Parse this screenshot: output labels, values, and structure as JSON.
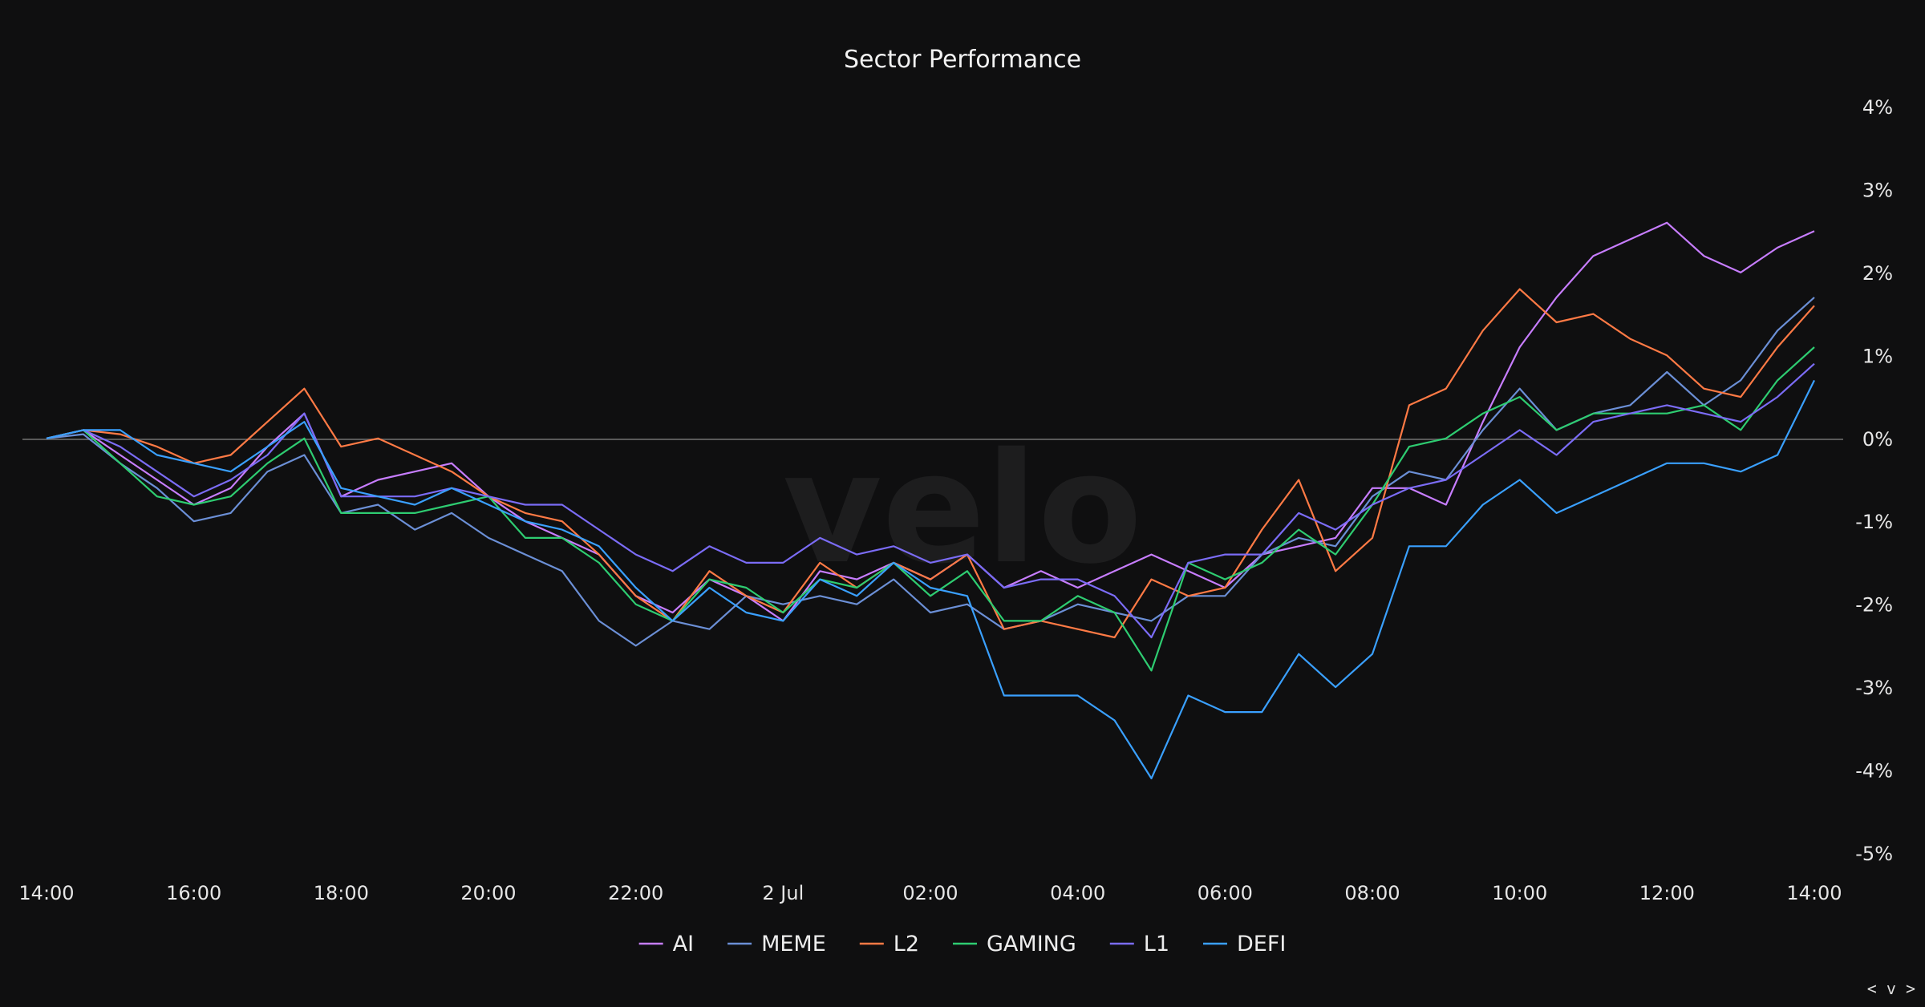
{
  "chart_data": {
    "type": "line",
    "title": "Sector Performance",
    "watermark": "velo",
    "corner_icon": "< v >",
    "x_tick_labels": [
      "14:00",
      "16:00",
      "18:00",
      "20:00",
      "22:00",
      "2 Jul",
      "02:00",
      "04:00",
      "06:00",
      "08:00",
      "10:00",
      "12:00",
      "14:00"
    ],
    "x_hours_range": [
      0,
      24
    ],
    "y_tick_labels": [
      "4%",
      "3%",
      "2%",
      "1%",
      "0%",
      "-1%",
      "-2%",
      "-3%",
      "-4%",
      "-5%"
    ],
    "ylim": [
      -5,
      4
    ],
    "y_axis_side": "right",
    "zero_line": true,
    "legend_position": "bottom-center",
    "series": [
      {
        "name": "AI",
        "color": "#c77dff",
        "points": [
          [
            0,
            0
          ],
          [
            0.5,
            0.1
          ],
          [
            1,
            -0.2
          ],
          [
            1.5,
            -0.5
          ],
          [
            2,
            -0.8
          ],
          [
            2.5,
            -0.6
          ],
          [
            3,
            -0.1
          ],
          [
            3.5,
            0.3
          ],
          [
            4,
            -0.7
          ],
          [
            4.5,
            -0.5
          ],
          [
            5,
            -0.4
          ],
          [
            5.5,
            -0.3
          ],
          [
            6,
            -0.7
          ],
          [
            6.5,
            -1.0
          ],
          [
            7,
            -1.2
          ],
          [
            7.5,
            -1.4
          ],
          [
            8,
            -1.9
          ],
          [
            8.5,
            -2.1
          ],
          [
            9,
            -1.7
          ],
          [
            9.5,
            -1.9
          ],
          [
            10,
            -2.2
          ],
          [
            10.5,
            -1.6
          ],
          [
            11,
            -1.7
          ],
          [
            11.5,
            -1.5
          ],
          [
            12,
            -1.7
          ],
          [
            12.5,
            -1.4
          ],
          [
            13,
            -1.8
          ],
          [
            13.5,
            -1.6
          ],
          [
            14,
            -1.8
          ],
          [
            14.5,
            -1.6
          ],
          [
            15,
            -1.4
          ],
          [
            15.5,
            -1.6
          ],
          [
            16,
            -1.8
          ],
          [
            16.5,
            -1.4
          ],
          [
            17,
            -1.3
          ],
          [
            17.5,
            -1.2
          ],
          [
            18,
            -0.6
          ],
          [
            18.5,
            -0.6
          ],
          [
            19,
            -0.8
          ],
          [
            19.5,
            0.2
          ],
          [
            20,
            1.1
          ],
          [
            20.5,
            1.7
          ],
          [
            21,
            2.2
          ],
          [
            21.5,
            2.4
          ],
          [
            22,
            2.6
          ],
          [
            22.5,
            2.2
          ],
          [
            23,
            2.0
          ],
          [
            23.5,
            2.3
          ],
          [
            24,
            2.5
          ]
        ]
      },
      {
        "name": "MEME",
        "color": "#6b8fd6",
        "points": [
          [
            0,
            0
          ],
          [
            0.5,
            0.05
          ],
          [
            1,
            -0.3
          ],
          [
            1.5,
            -0.6
          ],
          [
            2,
            -1.0
          ],
          [
            2.5,
            -0.9
          ],
          [
            3,
            -0.4
          ],
          [
            3.5,
            -0.2
          ],
          [
            4,
            -0.9
          ],
          [
            4.5,
            -0.8
          ],
          [
            5,
            -1.1
          ],
          [
            5.5,
            -0.9
          ],
          [
            6,
            -1.2
          ],
          [
            6.5,
            -1.4
          ],
          [
            7,
            -1.6
          ],
          [
            7.5,
            -2.2
          ],
          [
            8,
            -2.5
          ],
          [
            8.5,
            -2.2
          ],
          [
            9,
            -2.3
          ],
          [
            9.5,
            -1.9
          ],
          [
            10,
            -2.0
          ],
          [
            10.5,
            -1.9
          ],
          [
            11,
            -2.0
          ],
          [
            11.5,
            -1.7
          ],
          [
            12,
            -2.1
          ],
          [
            12.5,
            -2.0
          ],
          [
            13,
            -2.3
          ],
          [
            13.5,
            -2.2
          ],
          [
            14,
            -2.0
          ],
          [
            14.5,
            -2.1
          ],
          [
            15,
            -2.2
          ],
          [
            15.5,
            -1.9
          ],
          [
            16,
            -1.9
          ],
          [
            16.5,
            -1.4
          ],
          [
            17,
            -1.2
          ],
          [
            17.5,
            -1.3
          ],
          [
            18,
            -0.7
          ],
          [
            18.5,
            -0.4
          ],
          [
            19,
            -0.5
          ],
          [
            19.5,
            0.1
          ],
          [
            20,
            0.6
          ],
          [
            20.5,
            0.1
          ],
          [
            21,
            0.3
          ],
          [
            21.5,
            0.4
          ],
          [
            22,
            0.8
          ],
          [
            22.5,
            0.4
          ],
          [
            23,
            0.7
          ],
          [
            23.5,
            1.3
          ],
          [
            24,
            1.7
          ]
        ]
      },
      {
        "name": "L2",
        "color": "#ff7a45",
        "points": [
          [
            0,
            0
          ],
          [
            0.5,
            0.1
          ],
          [
            1,
            0.05
          ],
          [
            1.5,
            -0.1
          ],
          [
            2,
            -0.3
          ],
          [
            2.5,
            -0.2
          ],
          [
            3,
            0.2
          ],
          [
            3.5,
            0.6
          ],
          [
            4,
            -0.1
          ],
          [
            4.5,
            0.0
          ],
          [
            5,
            -0.2
          ],
          [
            5.5,
            -0.4
          ],
          [
            6,
            -0.7
          ],
          [
            6.5,
            -0.9
          ],
          [
            7,
            -1.0
          ],
          [
            7.5,
            -1.4
          ],
          [
            8,
            -1.9
          ],
          [
            8.5,
            -2.2
          ],
          [
            9,
            -1.6
          ],
          [
            9.5,
            -1.9
          ],
          [
            10,
            -2.1
          ],
          [
            10.5,
            -1.5
          ],
          [
            11,
            -1.8
          ],
          [
            11.5,
            -1.5
          ],
          [
            12,
            -1.7
          ],
          [
            12.5,
            -1.4
          ],
          [
            13,
            -2.3
          ],
          [
            13.5,
            -2.2
          ],
          [
            14,
            -2.3
          ],
          [
            14.5,
            -2.4
          ],
          [
            15,
            -1.7
          ],
          [
            15.5,
            -1.9
          ],
          [
            16,
            -1.8
          ],
          [
            16.5,
            -1.1
          ],
          [
            17,
            -0.5
          ],
          [
            17.5,
            -1.6
          ],
          [
            18,
            -1.2
          ],
          [
            18.5,
            0.4
          ],
          [
            19,
            0.6
          ],
          [
            19.5,
            1.3
          ],
          [
            20,
            1.8
          ],
          [
            20.5,
            1.4
          ],
          [
            21,
            1.5
          ],
          [
            21.5,
            1.2
          ],
          [
            22,
            1.0
          ],
          [
            22.5,
            0.6
          ],
          [
            23,
            0.5
          ],
          [
            23.5,
            1.1
          ],
          [
            24,
            1.6
          ]
        ]
      },
      {
        "name": "GAMING",
        "color": "#2ecc71",
        "points": [
          [
            0,
            0
          ],
          [
            0.5,
            0.1
          ],
          [
            1,
            -0.3
          ],
          [
            1.5,
            -0.7
          ],
          [
            2,
            -0.8
          ],
          [
            2.5,
            -0.7
          ],
          [
            3,
            -0.3
          ],
          [
            3.5,
            0.0
          ],
          [
            4,
            -0.9
          ],
          [
            4.5,
            -0.9
          ],
          [
            5,
            -0.9
          ],
          [
            5.5,
            -0.8
          ],
          [
            6,
            -0.7
          ],
          [
            6.5,
            -1.2
          ],
          [
            7,
            -1.2
          ],
          [
            7.5,
            -1.5
          ],
          [
            8,
            -2.0
          ],
          [
            8.5,
            -2.2
          ],
          [
            9,
            -1.7
          ],
          [
            9.5,
            -1.8
          ],
          [
            10,
            -2.1
          ],
          [
            10.5,
            -1.7
          ],
          [
            11,
            -1.8
          ],
          [
            11.5,
            -1.5
          ],
          [
            12,
            -1.9
          ],
          [
            12.5,
            -1.6
          ],
          [
            13,
            -2.2
          ],
          [
            13.5,
            -2.2
          ],
          [
            14,
            -1.9
          ],
          [
            14.5,
            -2.1
          ],
          [
            15,
            -2.8
          ],
          [
            15.5,
            -1.5
          ],
          [
            16,
            -1.7
          ],
          [
            16.5,
            -1.5
          ],
          [
            17,
            -1.1
          ],
          [
            17.5,
            -1.4
          ],
          [
            18,
            -0.8
          ],
          [
            18.5,
            -0.1
          ],
          [
            19,
            0.0
          ],
          [
            19.5,
            0.3
          ],
          [
            20,
            0.5
          ],
          [
            20.5,
            0.1
          ],
          [
            21,
            0.3
          ],
          [
            21.5,
            0.3
          ],
          [
            22,
            0.3
          ],
          [
            22.5,
            0.4
          ],
          [
            23,
            0.1
          ],
          [
            23.5,
            0.7
          ],
          [
            24,
            1.1
          ]
        ]
      },
      {
        "name": "L1",
        "color": "#7b6cf6",
        "points": [
          [
            0,
            0
          ],
          [
            0.5,
            0.1
          ],
          [
            1,
            -0.1
          ],
          [
            1.5,
            -0.4
          ],
          [
            2,
            -0.7
          ],
          [
            2.5,
            -0.5
          ],
          [
            3,
            -0.2
          ],
          [
            3.5,
            0.3
          ],
          [
            4,
            -0.7
          ],
          [
            4.5,
            -0.7
          ],
          [
            5,
            -0.7
          ],
          [
            5.5,
            -0.6
          ],
          [
            6,
            -0.7
          ],
          [
            6.5,
            -0.8
          ],
          [
            7,
            -0.8
          ],
          [
            7.5,
            -1.1
          ],
          [
            8,
            -1.4
          ],
          [
            8.5,
            -1.6
          ],
          [
            9,
            -1.3
          ],
          [
            9.5,
            -1.5
          ],
          [
            10,
            -1.5
          ],
          [
            10.5,
            -1.2
          ],
          [
            11,
            -1.4
          ],
          [
            11.5,
            -1.3
          ],
          [
            12,
            -1.5
          ],
          [
            12.5,
            -1.4
          ],
          [
            13,
            -1.8
          ],
          [
            13.5,
            -1.7
          ],
          [
            14,
            -1.7
          ],
          [
            14.5,
            -1.9
          ],
          [
            15,
            -2.4
          ],
          [
            15.5,
            -1.5
          ],
          [
            16,
            -1.4
          ],
          [
            16.5,
            -1.4
          ],
          [
            17,
            -0.9
          ],
          [
            17.5,
            -1.1
          ],
          [
            18,
            -0.8
          ],
          [
            18.5,
            -0.6
          ],
          [
            19,
            -0.5
          ],
          [
            19.5,
            -0.2
          ],
          [
            20,
            0.1
          ],
          [
            20.5,
            -0.2
          ],
          [
            21,
            0.2
          ],
          [
            21.5,
            0.3
          ],
          [
            22,
            0.4
          ],
          [
            22.5,
            0.3
          ],
          [
            23,
            0.2
          ],
          [
            23.5,
            0.5
          ],
          [
            24,
            0.9
          ]
        ]
      },
      {
        "name": "DEFI",
        "color": "#3aa0ff",
        "points": [
          [
            0,
            0
          ],
          [
            0.5,
            0.1
          ],
          [
            1,
            0.1
          ],
          [
            1.5,
            -0.2
          ],
          [
            2,
            -0.3
          ],
          [
            2.5,
            -0.4
          ],
          [
            3,
            -0.1
          ],
          [
            3.5,
            0.2
          ],
          [
            4,
            -0.6
          ],
          [
            4.5,
            -0.7
          ],
          [
            5,
            -0.8
          ],
          [
            5.5,
            -0.6
          ],
          [
            6,
            -0.8
          ],
          [
            6.5,
            -1.0
          ],
          [
            7,
            -1.1
          ],
          [
            7.5,
            -1.3
          ],
          [
            8,
            -1.8
          ],
          [
            8.5,
            -2.2
          ],
          [
            9,
            -1.8
          ],
          [
            9.5,
            -2.1
          ],
          [
            10,
            -2.2
          ],
          [
            10.5,
            -1.7
          ],
          [
            11,
            -1.9
          ],
          [
            11.5,
            -1.5
          ],
          [
            12,
            -1.8
          ],
          [
            12.5,
            -1.9
          ],
          [
            13,
            -3.1
          ],
          [
            13.5,
            -3.1
          ],
          [
            14,
            -3.1
          ],
          [
            14.5,
            -3.4
          ],
          [
            15,
            -4.1
          ],
          [
            15.5,
            -3.1
          ],
          [
            16,
            -3.3
          ],
          [
            16.5,
            -3.3
          ],
          [
            17,
            -2.6
          ],
          [
            17.5,
            -3.0
          ],
          [
            18,
            -2.6
          ],
          [
            18.5,
            -1.3
          ],
          [
            19,
            -1.3
          ],
          [
            19.5,
            -0.8
          ],
          [
            20,
            -0.5
          ],
          [
            20.5,
            -0.9
          ],
          [
            21,
            -0.7
          ],
          [
            21.5,
            -0.5
          ],
          [
            22,
            -0.3
          ],
          [
            22.5,
            -0.3
          ],
          [
            23,
            -0.4
          ],
          [
            23.5,
            -0.2
          ],
          [
            24,
            0.7
          ]
        ]
      }
    ]
  }
}
